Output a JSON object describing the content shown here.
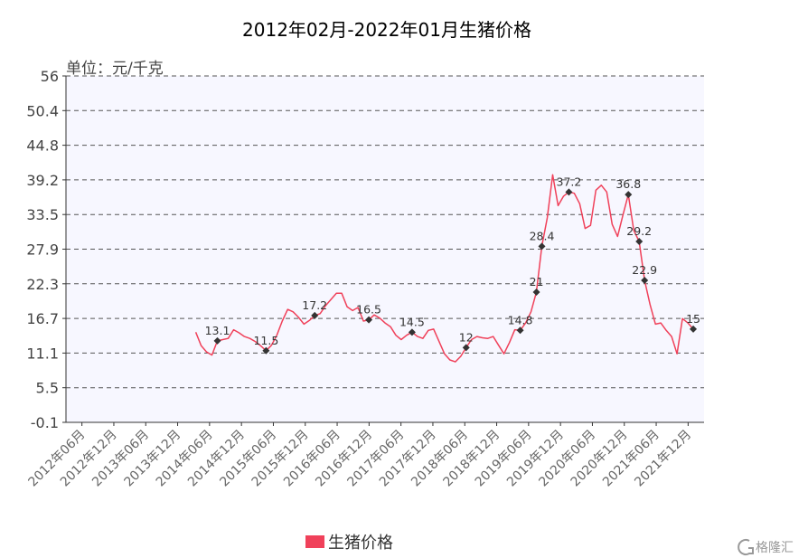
{
  "chart_data": {
    "type": "line",
    "title": "2012年02月-2022年01月生猪价格",
    "unit_label": "单位：元/千克",
    "ylim": [
      -0.1,
      56
    ],
    "y_ticks": [
      "56",
      "50.4",
      "44.8",
      "39.2",
      "33.5",
      "27.9",
      "22.3",
      "16.7",
      "11.1",
      "5.5",
      "-0.1"
    ],
    "x_ticks": [
      "2012年06月",
      "2012年12月",
      "2013年06月",
      "2013年12月",
      "2014年06月",
      "2014年12月",
      "2015年06月",
      "2015年12月",
      "2016年06月",
      "2016年12月",
      "2017年06月",
      "2017年12月",
      "2018年06月",
      "2018年12月",
      "2019年06月",
      "2019年12月",
      "2020年06月",
      "2020年12月",
      "2021年06月",
      "2021年12月"
    ],
    "grid": true,
    "legend_position": "bottom",
    "series": [
      {
        "name": "生猪价格",
        "color": "#f0415a",
        "points": [
          {
            "x": "2014-02",
            "y": 14.5
          },
          {
            "x": "2014-03",
            "y": 12.3
          },
          {
            "x": "2014-04",
            "y": 11.3
          },
          {
            "x": "2014-05",
            "y": 10.8
          },
          {
            "x": "2014-06",
            "y": 13.1
          },
          {
            "x": "2014-07",
            "y": 13.3
          },
          {
            "x": "2014-08",
            "y": 13.5
          },
          {
            "x": "2014-09",
            "y": 14.9
          },
          {
            "x": "2014-10",
            "y": 14.4
          },
          {
            "x": "2014-11",
            "y": 13.8
          },
          {
            "x": "2014-12",
            "y": 13.5
          },
          {
            "x": "2015-01",
            "y": 13.0
          },
          {
            "x": "2015-02",
            "y": 12.3
          },
          {
            "x": "2015-03",
            "y": 11.5
          },
          {
            "x": "2015-04",
            "y": 12.4
          },
          {
            "x": "2015-05",
            "y": 14.0
          },
          {
            "x": "2015-06",
            "y": 16.3
          },
          {
            "x": "2015-07",
            "y": 18.2
          },
          {
            "x": "2015-08",
            "y": 17.8
          },
          {
            "x": "2015-09",
            "y": 16.9
          },
          {
            "x": "2015-10",
            "y": 15.8
          },
          {
            "x": "2015-11",
            "y": 16.4
          },
          {
            "x": "2015-12",
            "y": 17.2
          },
          {
            "x": "2016-01",
            "y": 17.5
          },
          {
            "x": "2016-02",
            "y": 18.8
          },
          {
            "x": "2016-03",
            "y": 19.8
          },
          {
            "x": "2016-04",
            "y": 20.8
          },
          {
            "x": "2016-05",
            "y": 20.8
          },
          {
            "x": "2016-06",
            "y": 18.6
          },
          {
            "x": "2016-07",
            "y": 18.0
          },
          {
            "x": "2016-08",
            "y": 18.5
          },
          {
            "x": "2016-09",
            "y": 16.3
          },
          {
            "x": "2016-10",
            "y": 16.5
          },
          {
            "x": "2016-11",
            "y": 17.3
          },
          {
            "x": "2016-12",
            "y": 16.8
          },
          {
            "x": "2017-01",
            "y": 16.0
          },
          {
            "x": "2017-02",
            "y": 15.4
          },
          {
            "x": "2017-03",
            "y": 14.0
          },
          {
            "x": "2017-04",
            "y": 13.3
          },
          {
            "x": "2017-05",
            "y": 14.0
          },
          {
            "x": "2017-06",
            "y": 14.5
          },
          {
            "x": "2017-07",
            "y": 13.8
          },
          {
            "x": "2017-08",
            "y": 13.5
          },
          {
            "x": "2017-09",
            "y": 14.8
          },
          {
            "x": "2017-10",
            "y": 15.0
          },
          {
            "x": "2017-11",
            "y": 13.0
          },
          {
            "x": "2017-12",
            "y": 11.0
          },
          {
            "x": "2018-01",
            "y": 10.0
          },
          {
            "x": "2018-02",
            "y": 9.7
          },
          {
            "x": "2018-03",
            "y": 10.6
          },
          {
            "x": "2018-04",
            "y": 12.0
          },
          {
            "x": "2018-05",
            "y": 13.3
          },
          {
            "x": "2018-06",
            "y": 13.8
          },
          {
            "x": "2018-07",
            "y": 13.6
          },
          {
            "x": "2018-08",
            "y": 13.5
          },
          {
            "x": "2018-09",
            "y": 13.8
          },
          {
            "x": "2018-10",
            "y": 12.4
          },
          {
            "x": "2018-11",
            "y": 11.0
          },
          {
            "x": "2018-12",
            "y": 12.8
          },
          {
            "x": "2019-01",
            "y": 14.9
          },
          {
            "x": "2019-02",
            "y": 14.8
          },
          {
            "x": "2019-03",
            "y": 16.0
          },
          {
            "x": "2019-04",
            "y": 17.8
          },
          {
            "x": "2019-05",
            "y": 21.0
          },
          {
            "x": "2019-06",
            "y": 28.4
          },
          {
            "x": "2019-07",
            "y": 33.0
          },
          {
            "x": "2019-08",
            "y": 40.0
          },
          {
            "x": "2019-09",
            "y": 35.0
          },
          {
            "x": "2019-10",
            "y": 36.5
          },
          {
            "x": "2019-11",
            "y": 37.2
          },
          {
            "x": "2019-12",
            "y": 37.0
          },
          {
            "x": "2020-01",
            "y": 35.3
          },
          {
            "x": "2020-02",
            "y": 31.3
          },
          {
            "x": "2020-03",
            "y": 31.8
          },
          {
            "x": "2020-04",
            "y": 37.5
          },
          {
            "x": "2020-05",
            "y": 38.3
          },
          {
            "x": "2020-06",
            "y": 37.2
          },
          {
            "x": "2020-07",
            "y": 32.0
          },
          {
            "x": "2020-08",
            "y": 30.0
          },
          {
            "x": "2020-09",
            "y": 33.5
          },
          {
            "x": "2020-10",
            "y": 36.8
          },
          {
            "x": "2020-11",
            "y": 31.0
          },
          {
            "x": "2020-12",
            "y": 29.2
          },
          {
            "x": "2021-01",
            "y": 22.9
          },
          {
            "x": "2021-02",
            "y": 19.0
          },
          {
            "x": "2021-03",
            "y": 15.8
          },
          {
            "x": "2021-04",
            "y": 16.0
          },
          {
            "x": "2021-05",
            "y": 14.8
          },
          {
            "x": "2021-06",
            "y": 13.8
          },
          {
            "x": "2021-07",
            "y": 11.0
          },
          {
            "x": "2021-08",
            "y": 16.7
          },
          {
            "x": "2021-09",
            "y": 16.0
          },
          {
            "x": "2021-10",
            "y": 15.0
          }
        ]
      }
    ],
    "annotations": [
      {
        "x": "2014-06",
        "y": 13.1,
        "label": "13.1"
      },
      {
        "x": "2015-03",
        "y": 11.5,
        "label": "11.5"
      },
      {
        "x": "2015-12",
        "y": 17.2,
        "label": "17.2"
      },
      {
        "x": "2016-10",
        "y": 16.5,
        "label": "16.5"
      },
      {
        "x": "2017-06",
        "y": 14.5,
        "label": "14.5"
      },
      {
        "x": "2018-04",
        "y": 12.0,
        "label": "12"
      },
      {
        "x": "2019-02",
        "y": 14.8,
        "label": "14.8"
      },
      {
        "x": "2019-05",
        "y": 21.0,
        "label": "21"
      },
      {
        "x": "2019-06",
        "y": 28.4,
        "label": "28.4"
      },
      {
        "x": "2019-11",
        "y": 37.2,
        "label": "37.2"
      },
      {
        "x": "2020-10",
        "y": 36.8,
        "label": "36.8"
      },
      {
        "x": "2020-12",
        "y": 29.2,
        "label": "29.2"
      },
      {
        "x": "2021-01",
        "y": 22.9,
        "label": "22.9"
      },
      {
        "x": "2021-10",
        "y": 15.0,
        "label": "15"
      }
    ]
  },
  "legend": {
    "label": "生猪价格",
    "color": "#f0415a"
  },
  "watermark": {
    "text": "格隆汇",
    "icon": "glh-logo-icon"
  }
}
